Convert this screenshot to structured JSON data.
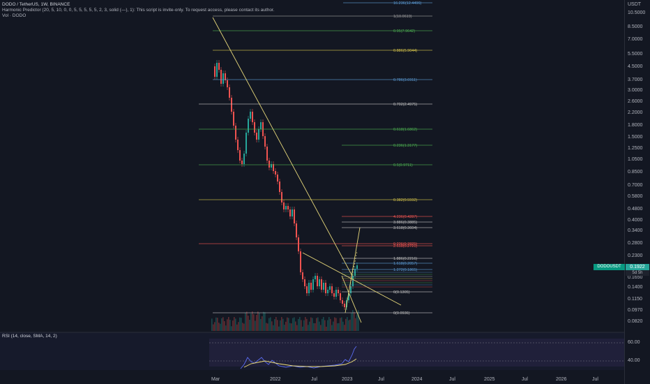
{
  "header": {
    "symbol_line": "DODO / TetherUS, 1W, BINANCE",
    "indicator_line": "Harmonic Predictor (20, 5, 10, 0, 0, 5, 5, 5, 5, 5, 2, 3, solid (—), 1): This script is invite-only. To request access, please contact its author.",
    "volume_line": "Vol · DODO"
  },
  "price_scale": {
    "unit": "USDT",
    "ticks": [
      "10.5000",
      "8.5000",
      "7.0000",
      "5.5000",
      "4.5000",
      "3.7000",
      "3.0000",
      "2.6000",
      "2.2000",
      "1.8000",
      "1.5000",
      "1.2500",
      "1.0500",
      "0.8500",
      "0.7000",
      "0.5800",
      "0.4800",
      "0.4000",
      "0.3400",
      "0.2800",
      "0.2300",
      "0.1650",
      "0.1400",
      "0.1150",
      "0.0970",
      "0.0820"
    ],
    "current_price": "0.1922",
    "symbol_tag": "DODOUSDT",
    "countdown": "5d 5h"
  },
  "time_axis": {
    "labels": [
      "Mar",
      "2022",
      "Jul",
      "2023",
      "Jul",
      "2024",
      "Jul",
      "2025",
      "Jul",
      "2026",
      "Jul"
    ]
  },
  "rsi": {
    "label": "RSI (14, close, SMA, 14, 2)",
    "ticks": [
      "60.00",
      "40.00"
    ]
  },
  "colors": {
    "background": "#131722",
    "up": "#26a69a",
    "down": "#ef5350",
    "trendline": "#e6d77a",
    "rsi_line": "#5b6cf2",
    "rsi_ma": "#f0e07a"
  },
  "fib_levels": [
    {
      "label": "16.236(12.4496)",
      "color": "#5b9bd5"
    },
    {
      "label": "1(10.0619)",
      "color": "#9e9e9e"
    },
    {
      "label": "0.95(7.9642)",
      "color": "#4caf50"
    },
    {
      "label": "0.886(5.9044)",
      "color": "#d4c34a"
    },
    {
      "label": "0.786(3.6911)",
      "color": "#5b9bd5"
    },
    {
      "label": "0.702(2.4975)",
      "color": "#c0c0c0"
    },
    {
      "label": "0.618(1.6862)",
      "color": "#4caf50"
    },
    {
      "label": "0.236(1.3177)",
      "color": "#4caf50"
    },
    {
      "label": "0.5(0.9711)",
      "color": "#4caf50"
    },
    {
      "label": "0.382(0.5592)",
      "color": "#d4c34a"
    },
    {
      "label": "4.236(0.4287)",
      "color": "#ef5350"
    },
    {
      "label": "3.886(0.3885)",
      "color": "#c0c0c0"
    },
    {
      "label": "3.618(0.3604)",
      "color": "#c0c0c0"
    },
    {
      "label": "0.236(0.2825)",
      "color": "#ef5350"
    },
    {
      "label": "2.618(0.2721)",
      "color": "#ef5350"
    },
    {
      "label": "1.886(0.2216)",
      "color": "#c0c0c0"
    },
    {
      "label": "1.618(0.2057)",
      "color": "#5b9bd5"
    },
    {
      "label": "1.272(0.1865)",
      "color": "#5b9bd5"
    },
    {
      "label": "0(0.1305)",
      "color": "#c0c0c0"
    },
    {
      "label": "0(0.0936)",
      "color": "#c0c0c0"
    }
  ]
}
